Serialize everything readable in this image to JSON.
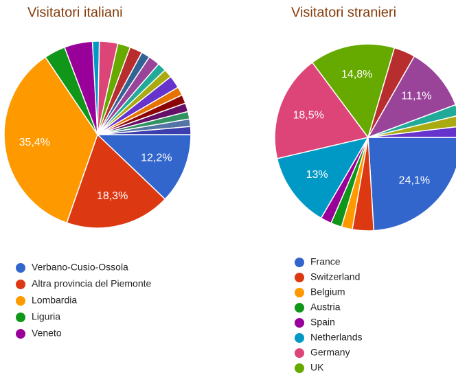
{
  "chart_data": [
    {
      "type": "pie",
      "title": "Visitatori italiani",
      "categories": [
        "Verbano-Cusio-Ossola",
        "Altra provincia del Piemonte",
        "Lombardia",
        "Liguria",
        "Veneto",
        null,
        null,
        null,
        null,
        null,
        null,
        null,
        null,
        null,
        null,
        null,
        null,
        null,
        null,
        null
      ],
      "values": [
        12.2,
        18.3,
        35.4,
        3.7,
        4.9,
        1.2,
        3.2,
        2.2,
        2.2,
        1.5,
        2.0,
        1.5,
        1.5,
        2.2,
        1.5,
        1.5,
        1.5,
        1.3,
        1.3,
        1.4
      ],
      "value_labels": [
        "12,2%",
        "18,3%",
        "35,4%",
        null,
        null,
        null,
        null,
        null,
        null,
        null,
        null,
        null,
        null,
        null,
        null,
        null,
        null,
        null,
        null,
        null
      ],
      "colors": [
        "#3366cc",
        "#dc3912",
        "#ff9900",
        "#109618",
        "#990099",
        "#0099c6",
        "#dd4477",
        "#66aa00",
        "#b82e2e",
        "#316395",
        "#994499",
        "#22aa99",
        "#aaaa11",
        "#6633cc",
        "#e67300",
        "#8b0707",
        "#651067",
        "#329262",
        "#5574a6",
        "#3b3eac"
      ]
    },
    {
      "type": "pie",
      "title": "Visitatori stranieri",
      "categories": [
        "France",
        "Switzerland",
        "Belgium",
        "Austria",
        "Spain",
        "Netherlands",
        "Germany",
        "UK",
        null,
        null,
        null,
        null,
        null
      ],
      "values": [
        24.1,
        3.7,
        1.9,
        1.9,
        1.9,
        13,
        18.5,
        14.8,
        3.7,
        11.1,
        1.9,
        1.9,
        1.9
      ],
      "value_labels": [
        "24,1%",
        null,
        null,
        null,
        null,
        "13%",
        "18,5%",
        "14,8%",
        null,
        "11,1%",
        null,
        null,
        null
      ],
      "colors": [
        "#3366cc",
        "#dc3912",
        "#ff9900",
        "#109618",
        "#990099",
        "#0099c6",
        "#dd4477",
        "#66aa00",
        "#b82e2e",
        "#994499",
        "#22aa99",
        "#aaaa11",
        "#6633cc"
      ]
    }
  ]
}
